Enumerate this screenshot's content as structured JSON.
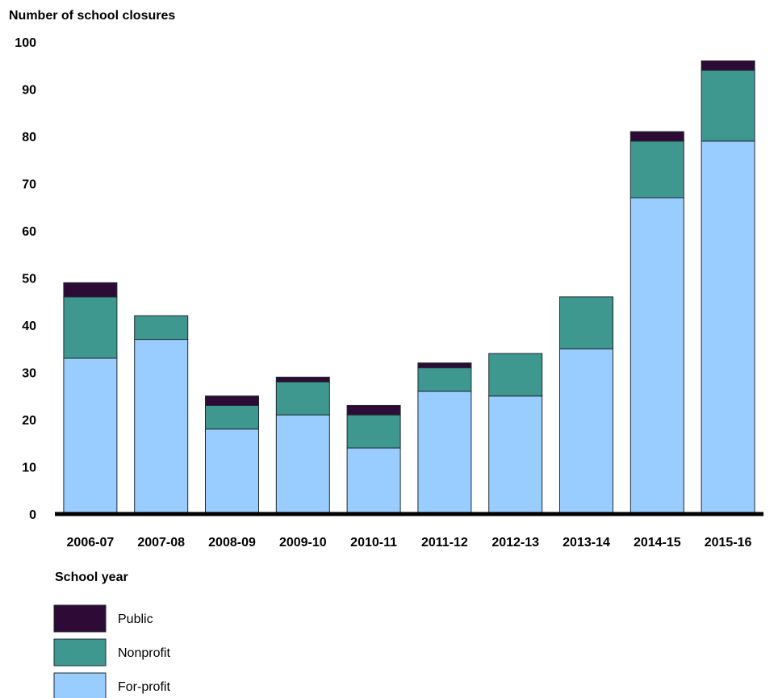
{
  "chart_data": {
    "type": "bar",
    "stacked": true,
    "title": "",
    "ylabel": "Number of school closures",
    "xlabel": "School year",
    "categories": [
      "2006-07",
      "2007-08",
      "2008-09",
      "2009-10",
      "2010-11",
      "2011-12",
      "2012-13",
      "2013-14",
      "2014-15",
      "2015-16"
    ],
    "series": [
      {
        "name": "For-profit",
        "color": "#99ccff",
        "values": [
          33,
          37,
          18,
          21,
          14,
          26,
          25,
          35,
          67,
          79
        ]
      },
      {
        "name": "Nonprofit",
        "color": "#3f9890",
        "values": [
          13,
          5,
          5,
          7,
          7,
          5,
          9,
          11,
          12,
          15
        ]
      },
      {
        "name": "Public",
        "color": "#2d0b36",
        "values": [
          3,
          0,
          2,
          1,
          2,
          1,
          0,
          0,
          2,
          2
        ]
      }
    ],
    "ylim": [
      0,
      100
    ],
    "yticks": [
      0,
      10,
      20,
      30,
      40,
      50,
      60,
      70,
      80,
      90,
      100
    ],
    "grid": false,
    "legend": {
      "placement": "bottom-left",
      "order": [
        "Public",
        "Nonprofit",
        "For-profit"
      ]
    }
  }
}
